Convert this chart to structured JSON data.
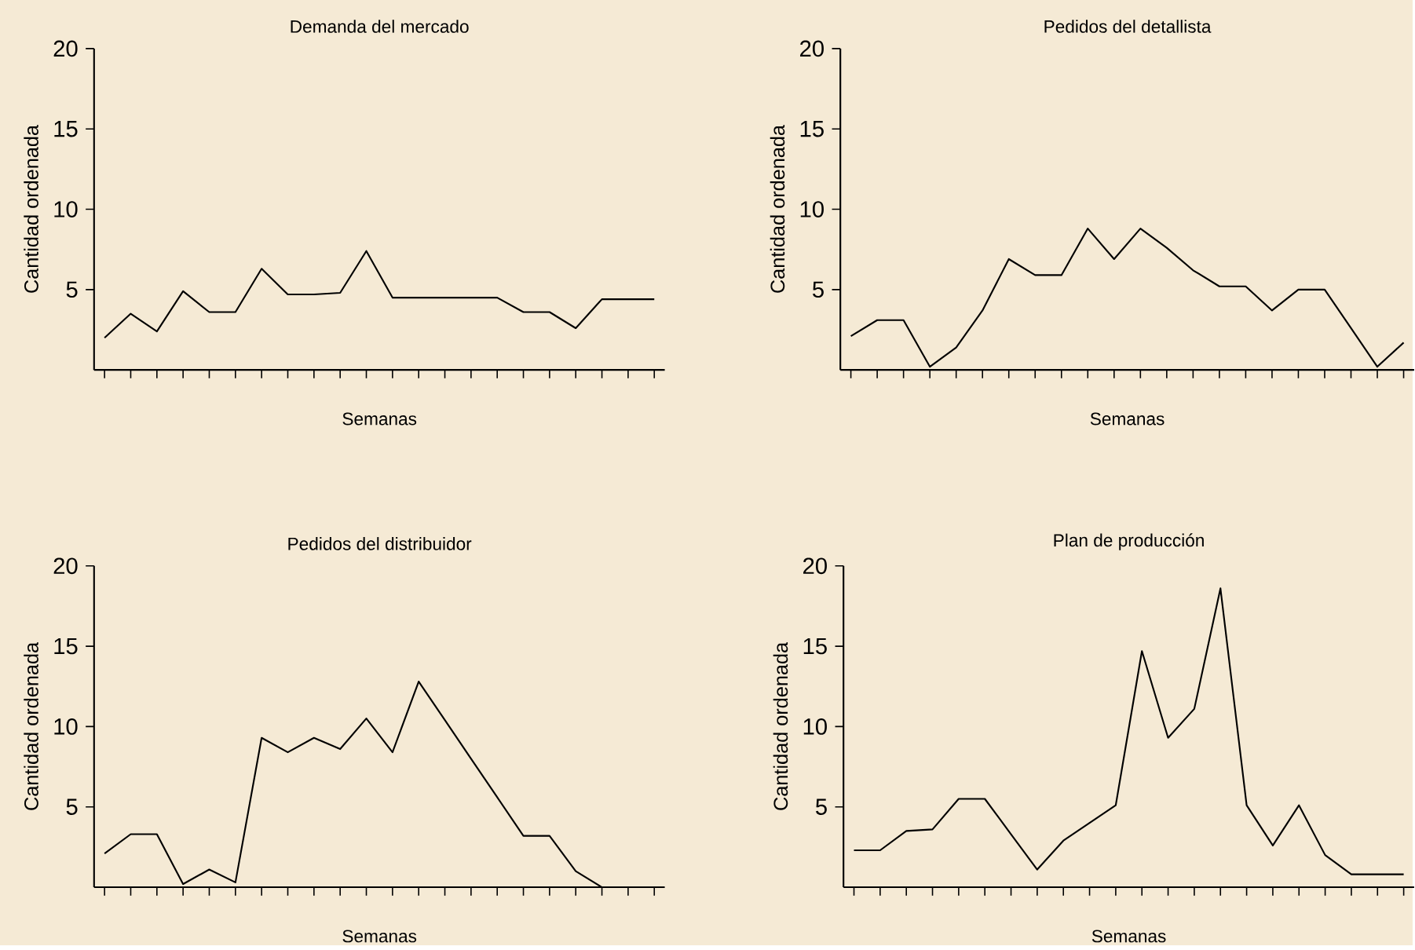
{
  "chart_data": [
    {
      "type": "line",
      "title": "Demanda del mercado",
      "xlabel": "Semanas",
      "ylabel": "Cantidad ordenada",
      "color": "#000000",
      "categories": [
        null,
        null,
        null,
        null,
        null,
        null,
        null,
        null,
        null,
        null,
        null,
        null,
        null,
        null,
        null,
        null,
        null,
        null,
        null,
        null,
        null,
        null
      ],
      "ylim": [
        0,
        20
      ],
      "yticks": [
        5,
        10,
        15,
        20
      ],
      "values": [
        2.0,
        3.5,
        2.4,
        4.9,
        3.6,
        3.6,
        6.3,
        4.7,
        4.7,
        4.8,
        7.4,
        4.5,
        4.5,
        4.5,
        4.5,
        4.5,
        3.6,
        3.6,
        2.6,
        4.4,
        4.4,
        4.4
      ]
    },
    {
      "type": "line",
      "title": "Pedidos del detallista",
      "xlabel": "Semanas",
      "ylabel": "Cantidad ordenada",
      "color": "#000000",
      "categories": [
        null,
        null,
        null,
        null,
        null,
        null,
        null,
        null,
        null,
        null,
        null,
        null,
        null,
        null,
        null,
        null,
        null,
        null,
        null,
        null,
        null,
        null
      ],
      "ylim": [
        0,
        20
      ],
      "yticks": [
        5,
        10,
        15,
        20
      ],
      "values": [
        2.1,
        3.1,
        3.1,
        0.2,
        1.4,
        3.7,
        6.9,
        5.9,
        5.9,
        8.8,
        6.9,
        8.8,
        7.6,
        6.2,
        5.2,
        5.2,
        3.7,
        5.0,
        5.0,
        2.6,
        0.2,
        1.7
      ]
    },
    {
      "type": "line",
      "title": "Pedidos del distribuidor",
      "xlabel": "Semanas",
      "ylabel": "Cantidad ordenada",
      "color": "#000000",
      "categories": [
        null,
        null,
        null,
        null,
        null,
        null,
        null,
        null,
        null,
        null,
        null,
        null,
        null,
        null,
        null,
        null,
        null,
        null,
        null,
        null,
        null,
        null
      ],
      "ylim": [
        0,
        20
      ],
      "yticks": [
        5,
        10,
        15,
        20
      ],
      "values": [
        2.1,
        3.3,
        3.3,
        0.2,
        1.1,
        0.3,
        9.3,
        8.4,
        9.3,
        8.6,
        10.5,
        8.4,
        12.8,
        10.4,
        8.0,
        5.6,
        3.2,
        3.2,
        1.0,
        0,
        null,
        null
      ]
    },
    {
      "type": "line",
      "title": "Plan de producción",
      "xlabel": "Semanas",
      "ylabel": "Cantidad ordenada",
      "color": "#000000",
      "categories": [
        null,
        null,
        null,
        null,
        null,
        null,
        null,
        null,
        null,
        null,
        null,
        null,
        null,
        null,
        null,
        null,
        null,
        null,
        null,
        null,
        null,
        null
      ],
      "ylim": [
        0,
        20
      ],
      "yticks": [
        5,
        10,
        15,
        20
      ],
      "values": [
        2.3,
        2.3,
        3.5,
        3.6,
        5.5,
        5.5,
        3.3,
        1.1,
        2.9,
        4.0,
        5.1,
        14.7,
        9.3,
        11.1,
        18.6,
        5.1,
        2.6,
        5.1,
        2.0,
        0.8,
        0.8,
        0.8
      ]
    }
  ]
}
